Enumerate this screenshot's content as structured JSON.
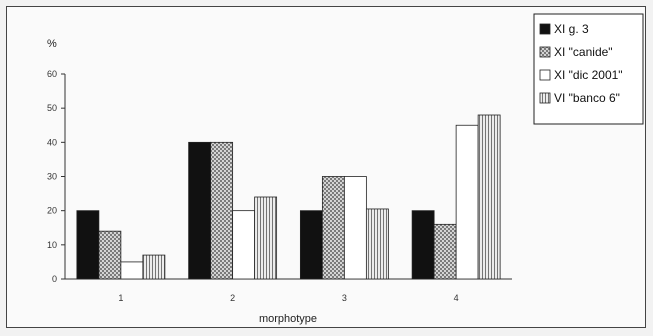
{
  "chart_data": {
    "type": "bar",
    "title": "",
    "ylabel": "%",
    "xlabel": "morphotype",
    "ylim": [
      0,
      60
    ],
    "yticks": [
      "0",
      "10",
      "20",
      "30",
      "40",
      "50",
      "60"
    ],
    "categories": [
      "1",
      "2",
      "3",
      "4"
    ],
    "grid": false,
    "legend_position": "top-right",
    "series": [
      {
        "name": "XI g. 3",
        "values": [
          20,
          40,
          20,
          20
        ],
        "fill": "#111111",
        "pattern": "solid"
      },
      {
        "name": "XI \"canide\"",
        "values": [
          14,
          40,
          30,
          16
        ],
        "fill": "#cfcfcf",
        "pattern": "crosshatch"
      },
      {
        "name": "XI \"dic 2001\"",
        "values": [
          5,
          20,
          30,
          45
        ],
        "fill": "#ffffff",
        "pattern": "blank"
      },
      {
        "name": "VI \"banco 6\"",
        "values": [
          7,
          24,
          20.5,
          48
        ],
        "fill": "#d4d4d4",
        "pattern": "vertical-lines"
      }
    ]
  }
}
